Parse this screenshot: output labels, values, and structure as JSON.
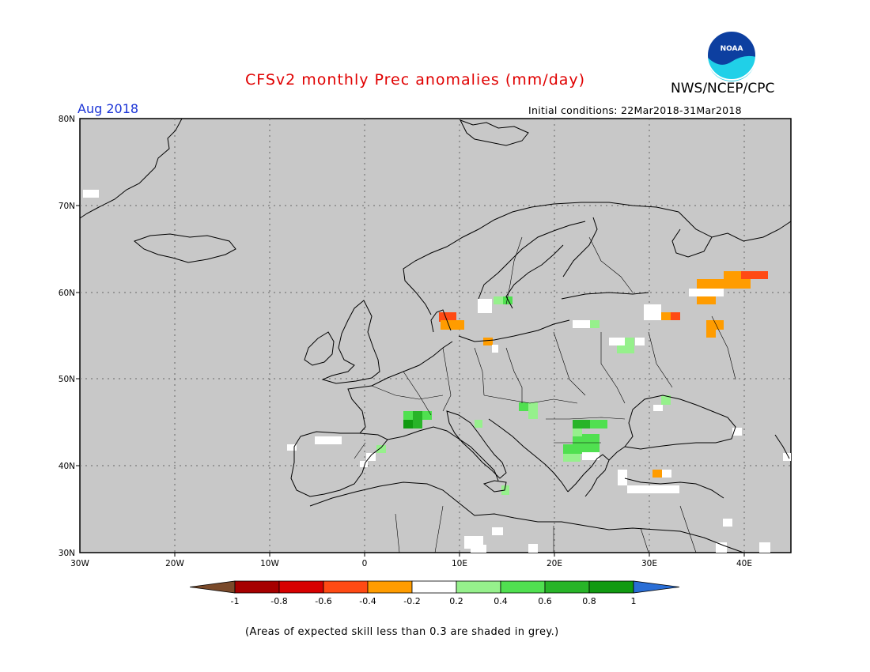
{
  "header": {
    "title": "CFSv2 monthly Prec anomalies (mm/day)",
    "org": "NWS/NCEP/CPC",
    "logo_text": "NOAA",
    "month": "Aug 2018",
    "initial_conditions": "Initial conditions: 22Mar2018-31Mar2018"
  },
  "map": {
    "lon_labels": [
      "30W",
      "20W",
      "10W",
      "0",
      "10E",
      "20E",
      "30E",
      "40E"
    ],
    "lat_labels": [
      "80N",
      "70N",
      "60N",
      "50N",
      "40N",
      "30N"
    ],
    "background_color": "#c8c8c8"
  },
  "colorbar": {
    "colors": [
      "#7a4a2a",
      "#a60000",
      "#d70000",
      "#ff4a14",
      "#ff9c00",
      "#ffffff",
      "#96f08c",
      "#50e050",
      "#28b428",
      "#119a11",
      "#2a6ed6"
    ],
    "labels": [
      "-1",
      "-0.8",
      "-0.6",
      "-0.4",
      "-0.2",
      "0.2",
      "0.4",
      "0.6",
      "0.8",
      "1"
    ]
  },
  "footnote": "(Areas of expected skill less than 0.3 are shaded in grey.)"
}
